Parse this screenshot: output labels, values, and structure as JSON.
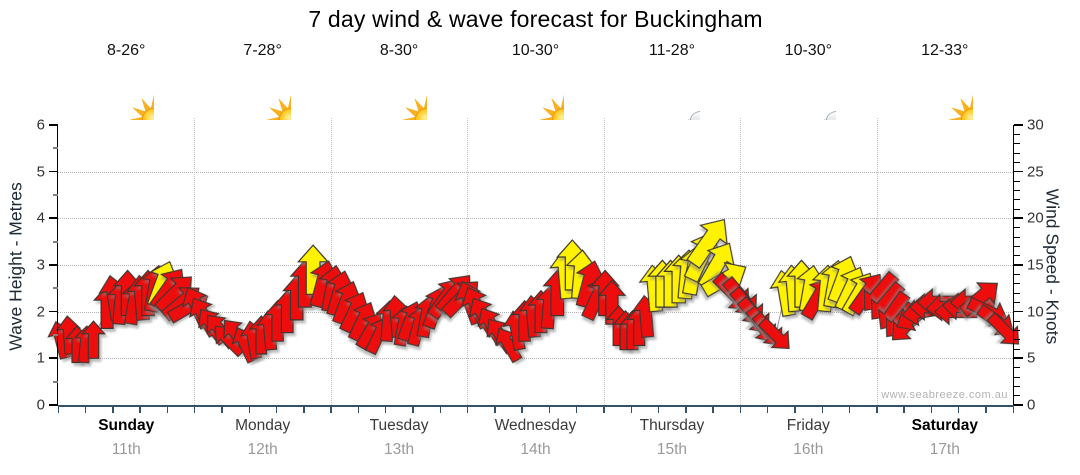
{
  "title": "7 day wind & wave forecast for Buckingham",
  "watermark": "www.seabreeze.com.au",
  "colors": {
    "arrow_red": "#ED100B",
    "arrow_yellow": "#FFF200",
    "arrow_outline": "#3c3630",
    "bottom_axis": "#33516B",
    "grid": "#bdbdbd",
    "tick_label": "#333333",
    "date_label": "#9a9a9a",
    "connector": "#9a9a9a"
  },
  "left_axis": {
    "label": "Wave Height - Metres",
    "min": 0,
    "max": 6,
    "major_ticks": [
      0,
      1,
      2,
      3,
      4,
      5,
      6
    ],
    "minor_step": 0.5
  },
  "right_axis": {
    "label": "Wind Speed - Knots",
    "min": 0,
    "max": 30,
    "major_ticks": [
      0,
      5,
      10,
      15,
      20,
      25,
      30
    ],
    "minor_step": 1
  },
  "days": [
    {
      "name": "Sunday",
      "date": "11th",
      "temp": "8-26°",
      "icon": "sunny",
      "bold": true
    },
    {
      "name": "Monday",
      "date": "12th",
      "temp": "7-28°",
      "icon": "sunny",
      "bold": false
    },
    {
      "name": "Tuesday",
      "date": "13th",
      "temp": "8-30°",
      "icon": "sunny",
      "bold": false
    },
    {
      "name": "Wednesday",
      "date": "14th",
      "temp": "10-30°",
      "icon": "sunny",
      "bold": false
    },
    {
      "name": "Thursday",
      "date": "15th",
      "temp": "11-28°",
      "icon": "partly-cloudy",
      "bold": false
    },
    {
      "name": "Friday",
      "date": "16th",
      "temp": "10-30°",
      "icon": "partly-cloudy",
      "bold": false
    },
    {
      "name": "Saturday",
      "date": "17th",
      "temp": "12-33°",
      "icon": "sunny",
      "bold": true
    }
  ],
  "chart_data": {
    "type": "wind_arrow_timeseries",
    "title": "7 day wind & wave forecast for Buckingham",
    "categories": [
      "Sunday 11th",
      "Monday 12th",
      "Tuesday 13th",
      "Wednesday 14th",
      "Thursday 15th",
      "Friday 16th",
      "Saturday 17th"
    ],
    "y_left": {
      "label": "Wave Height - Metres",
      "range": [
        0,
        6
      ]
    },
    "y_right": {
      "label": "Wind Speed - Knots",
      "range": [
        0,
        30
      ]
    },
    "grid": "dotted, horizontal each metre, vertical each day boundary",
    "legend": "arrow color = wind strength (red ≤ ~12 kn, yellow ≥ ~12 kn); arrow angle = wind direction",
    "arrow_format": [
      "day_index",
      "fraction_of_day",
      "wind_speed_knots",
      "direction_deg_cw_from_up",
      "color r|y"
    ],
    "arrows": [
      [
        0,
        0.02,
        7,
        -15,
        "r"
      ],
      [
        0,
        0.08,
        7.5,
        -5,
        "r"
      ],
      [
        0,
        0.14,
        6.5,
        0,
        "r"
      ],
      [
        0,
        0.2,
        6.5,
        5,
        "r"
      ],
      [
        0,
        0.26,
        7,
        0,
        "r"
      ],
      [
        0,
        0.36,
        10.5,
        0,
        "r"
      ],
      [
        0,
        0.41,
        11.5,
        -10,
        "r"
      ],
      [
        0,
        0.46,
        11,
        5,
        "r"
      ],
      [
        0,
        0.51,
        12,
        0,
        "r"
      ],
      [
        0,
        0.56,
        11,
        10,
        "r"
      ],
      [
        0,
        0.61,
        11.5,
        -5,
        "r"
      ],
      [
        0,
        0.66,
        12,
        0,
        "r"
      ],
      [
        0,
        0.71,
        12.5,
        10,
        "r"
      ],
      [
        0,
        0.76,
        13,
        20,
        "y"
      ],
      [
        0,
        0.81,
        12.5,
        35,
        "r"
      ],
      [
        0,
        0.86,
        12,
        45,
        "r"
      ],
      [
        0,
        0.91,
        11,
        50,
        "r"
      ],
      [
        0,
        0.96,
        10.5,
        60,
        "r"
      ],
      [
        1,
        0.02,
        10.5,
        -25,
        "r"
      ],
      [
        1,
        0.07,
        9.5,
        -30,
        "r"
      ],
      [
        1,
        0.13,
        8.5,
        -35,
        "r"
      ],
      [
        1,
        0.19,
        8,
        -40,
        "r"
      ],
      [
        1,
        0.25,
        7,
        -45,
        "r"
      ],
      [
        1,
        0.31,
        7.5,
        -40,
        "r"
      ],
      [
        1,
        0.37,
        6.5,
        -25,
        "r"
      ],
      [
        1,
        0.43,
        7,
        -10,
        "r"
      ],
      [
        1,
        0.49,
        7.5,
        0,
        "r"
      ],
      [
        1,
        0.55,
        8,
        -5,
        "r"
      ],
      [
        1,
        0.61,
        9,
        0,
        "r"
      ],
      [
        1,
        0.68,
        10,
        0,
        "r"
      ],
      [
        1,
        0.75,
        11.5,
        0,
        "r"
      ],
      [
        1,
        0.81,
        13,
        0,
        "r"
      ],
      [
        1,
        0.87,
        14.5,
        0,
        "y"
      ],
      [
        1,
        0.94,
        13,
        15,
        "r"
      ],
      [
        2,
        0.01,
        12.5,
        10,
        "r"
      ],
      [
        2,
        0.06,
        12,
        15,
        "r"
      ],
      [
        2,
        0.11,
        11,
        20,
        "r"
      ],
      [
        2,
        0.17,
        10,
        25,
        "r"
      ],
      [
        2,
        0.23,
        9,
        25,
        "r"
      ],
      [
        2,
        0.29,
        8,
        30,
        "r"
      ],
      [
        2,
        0.35,
        7.5,
        25,
        "r"
      ],
      [
        2,
        0.42,
        9,
        5,
        "r"
      ],
      [
        2,
        0.48,
        9.5,
        -5,
        "r"
      ],
      [
        2,
        0.53,
        8.5,
        10,
        "r"
      ],
      [
        2,
        0.58,
        9,
        20,
        "r"
      ],
      [
        2,
        0.64,
        8.5,
        15,
        "r"
      ],
      [
        2,
        0.7,
        9.5,
        10,
        "r"
      ],
      [
        2,
        0.77,
        10.5,
        20,
        "r"
      ],
      [
        2,
        0.84,
        11.5,
        35,
        "r"
      ],
      [
        2,
        0.91,
        12,
        40,
        "r"
      ],
      [
        2,
        0.96,
        11.5,
        45,
        "r"
      ],
      [
        3,
        0.02,
        11,
        -20,
        "r"
      ],
      [
        3,
        0.07,
        10.5,
        -25,
        "r"
      ],
      [
        3,
        0.12,
        9.5,
        -30,
        "r"
      ],
      [
        3,
        0.18,
        8.5,
        -30,
        "r"
      ],
      [
        3,
        0.24,
        7.5,
        -35,
        "r"
      ],
      [
        3,
        0.3,
        6.5,
        -30,
        "r"
      ],
      [
        3,
        0.36,
        8,
        -10,
        "r"
      ],
      [
        3,
        0.42,
        9,
        0,
        "r"
      ],
      [
        3,
        0.48,
        9.5,
        -5,
        "r"
      ],
      [
        3,
        0.54,
        10,
        0,
        "r"
      ],
      [
        3,
        0.6,
        10.5,
        5,
        "r"
      ],
      [
        3,
        0.66,
        12,
        0,
        "r"
      ],
      [
        3,
        0.72,
        14,
        -5,
        "y"
      ],
      [
        3,
        0.77,
        15,
        0,
        "y"
      ],
      [
        3,
        0.83,
        14,
        5,
        "y"
      ],
      [
        3,
        0.89,
        13,
        15,
        "r"
      ],
      [
        3,
        0.95,
        11.5,
        25,
        "r"
      ],
      [
        4,
        0.01,
        12,
        0,
        "r"
      ],
      [
        4,
        0.06,
        11,
        0,
        "r"
      ],
      [
        4,
        0.11,
        8.5,
        0,
        "r"
      ],
      [
        4,
        0.16,
        8,
        0,
        "r"
      ],
      [
        4,
        0.21,
        8,
        0,
        "r"
      ],
      [
        4,
        0.26,
        8.5,
        0,
        "r"
      ],
      [
        4,
        0.31,
        9.5,
        -5,
        "r"
      ],
      [
        4,
        0.37,
        12.5,
        -5,
        "y"
      ],
      [
        4,
        0.43,
        13,
        0,
        "y"
      ],
      [
        4,
        0.49,
        13,
        0,
        "y"
      ],
      [
        4,
        0.55,
        13.5,
        0,
        "y"
      ],
      [
        4,
        0.61,
        14,
        5,
        "y"
      ],
      [
        4,
        0.66,
        14.5,
        10,
        "y"
      ],
      [
        4,
        0.72,
        16,
        25,
        "y"
      ],
      [
        4,
        0.77,
        17.5,
        35,
        "y"
      ],
      [
        4,
        0.83,
        15,
        30,
        "y"
      ],
      [
        4,
        0.89,
        13.5,
        60,
        "y"
      ],
      [
        4,
        0.95,
        12,
        135,
        "r"
      ],
      [
        5,
        0.01,
        11.5,
        140,
        "r"
      ],
      [
        5,
        0.06,
        10.5,
        140,
        "r"
      ],
      [
        5,
        0.11,
        9.5,
        140,
        "r"
      ],
      [
        5,
        0.16,
        8.5,
        145,
        "r"
      ],
      [
        5,
        0.21,
        8,
        140,
        "r"
      ],
      [
        5,
        0.26,
        7.5,
        135,
        "r"
      ],
      [
        5,
        0.33,
        12,
        -10,
        "y"
      ],
      [
        5,
        0.39,
        12.5,
        -5,
        "y"
      ],
      [
        5,
        0.45,
        13,
        0,
        "y"
      ],
      [
        5,
        0.51,
        12.5,
        10,
        "y"
      ],
      [
        5,
        0.57,
        11.5,
        30,
        "r"
      ],
      [
        5,
        0.63,
        12.5,
        5,
        "y"
      ],
      [
        5,
        0.69,
        13,
        10,
        "y"
      ],
      [
        5,
        0.75,
        13.5,
        20,
        "y"
      ],
      [
        5,
        0.81,
        12.5,
        25,
        "y"
      ],
      [
        5,
        0.87,
        12,
        30,
        "y"
      ],
      [
        5,
        0.93,
        12,
        35,
        "r"
      ],
      [
        6,
        0.02,
        12,
        -140,
        "r"
      ],
      [
        6,
        0.07,
        11,
        -140,
        "r"
      ],
      [
        6,
        0.12,
        10,
        -145,
        "r"
      ],
      [
        6,
        0.17,
        9,
        -140,
        "r"
      ],
      [
        6,
        0.22,
        8.5,
        -135,
        "r"
      ],
      [
        6,
        0.28,
        9.5,
        -120,
        "r"
      ],
      [
        6,
        0.34,
        10,
        -100,
        "r"
      ],
      [
        6,
        0.4,
        10.5,
        -90,
        "r"
      ],
      [
        6,
        0.46,
        11,
        -90,
        "r"
      ],
      [
        6,
        0.52,
        10.5,
        -95,
        "r"
      ],
      [
        6,
        0.58,
        10,
        -90,
        "r"
      ],
      [
        6,
        0.64,
        10.5,
        -85,
        "r"
      ],
      [
        6,
        0.7,
        11,
        -90,
        "r"
      ],
      [
        6,
        0.76,
        11.5,
        50,
        "r"
      ],
      [
        6,
        0.82,
        10,
        115,
        "r"
      ],
      [
        6,
        0.88,
        9,
        125,
        "r"
      ],
      [
        6,
        0.94,
        8,
        135,
        "r"
      ]
    ]
  }
}
